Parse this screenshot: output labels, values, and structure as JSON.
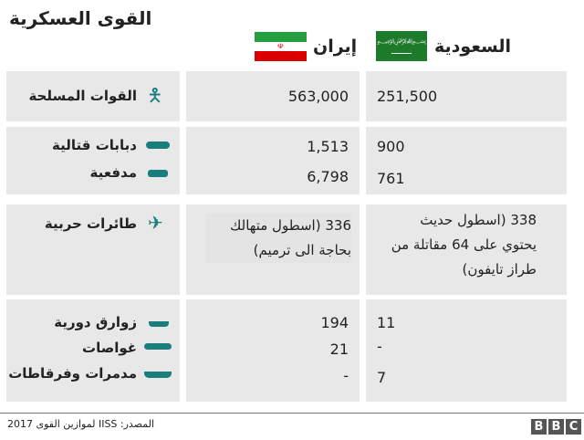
{
  "title": "القوى العسكرية",
  "countries": {
    "iran": "إيران",
    "saudi": "السعودية"
  },
  "rows": {
    "armed_forces": {
      "label": "القوات المسلحة",
      "icon": "soldier-icon",
      "iran": "563,000",
      "saudi": "251,500"
    },
    "tanks": {
      "label": "دبابات قتالية",
      "icon": "tank-icon",
      "iran": "1,513",
      "saudi": "900"
    },
    "artillery": {
      "label": "مدفعية",
      "icon": "artillery-icon",
      "iran": "6,798",
      "saudi": "761"
    },
    "aircraft": {
      "label": "طائرات حربية",
      "icon": "fighter-jet-icon",
      "iran": "336 (اسطول متهالك بحاجة الى ترميم)",
      "saudi": "338 (اسطول حديث يحتوي على 64 مقاتلة من طراز تايفون)"
    },
    "patrol": {
      "label": "زوارق دورية",
      "icon": "patrol-boat-icon",
      "iran": "194",
      "saudi": "11"
    },
    "submarines": {
      "label": "غواصات",
      "icon": "submarine-icon",
      "iran": "21",
      "saudi": "-"
    },
    "destroyers": {
      "label": "مدمرات وفرقاطات",
      "icon": "warship-icon",
      "iran": "-",
      "saudi": "7"
    }
  },
  "source": "المصدر: IISS لموازين القوى 2017",
  "logo": "BBC",
  "colors": {
    "icon": "#1a7f7c",
    "cell": "#e8e8e8"
  }
}
